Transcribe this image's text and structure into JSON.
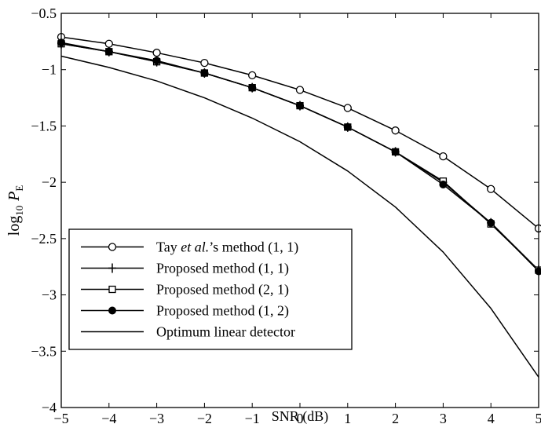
{
  "chart_data": {
    "type": "line",
    "title": "",
    "xlabel": "SNR (dB)",
    "ylabel": {
      "prefix": "log",
      "sub": "10",
      "var": "P",
      "varsub": "E"
    },
    "xlim": [
      -5,
      5
    ],
    "ylim": [
      -4,
      -0.5
    ],
    "xticks": [
      -5,
      -4,
      -3,
      -2,
      -1,
      0,
      1,
      2,
      3,
      4,
      5
    ],
    "yticks": [
      -4,
      -3.5,
      -3,
      -2.5,
      -2,
      -1.5,
      -1,
      -0.5
    ],
    "xtick_labels": [
      "−5",
      "−4",
      "−3",
      "−2",
      "−1",
      "0",
      "1",
      "2",
      "3",
      "4",
      "5"
    ],
    "ytick_labels": [
      "−4",
      "−3.5",
      "−3",
      "−2.5",
      "−2",
      "−1.5",
      "−1",
      "−0.5"
    ],
    "grid": false,
    "legend_position": "bottom-left",
    "x": [
      -5,
      -4,
      -3,
      -2,
      -1,
      0,
      1,
      2,
      3,
      4,
      5
    ],
    "series": [
      {
        "name": "Tay et al.'s method (1, 1)",
        "legend_parts": [
          {
            "t": "Tay "
          },
          {
            "t": "et al.",
            "i": true
          },
          {
            "t": "’s method (1, 1)"
          }
        ],
        "marker": "circle-open",
        "values": [
          -0.71,
          -0.77,
          -0.85,
          -0.94,
          -1.05,
          -1.18,
          -1.34,
          -1.54,
          -1.77,
          -2.06,
          -2.41
        ]
      },
      {
        "name": "Proposed method (1, 1)",
        "legend_parts": [
          {
            "t": "Proposed method (1, 1)"
          }
        ],
        "marker": "plus",
        "values": [
          -0.77,
          -0.84,
          -0.93,
          -1.03,
          -1.16,
          -1.32,
          -1.51,
          -1.73,
          -2.0,
          -2.36,
          -2.78
        ]
      },
      {
        "name": "Proposed method (2, 1)",
        "legend_parts": [
          {
            "t": "Proposed method (2, 1)"
          }
        ],
        "marker": "square-open",
        "values": [
          -0.77,
          -0.84,
          -0.93,
          -1.03,
          -1.16,
          -1.32,
          -1.51,
          -1.73,
          -1.99,
          -2.37,
          -2.78
        ]
      },
      {
        "name": "Proposed method (1, 2)",
        "legend_parts": [
          {
            "t": "Proposed method (1, 2)"
          }
        ],
        "marker": "circle-filled",
        "values": [
          -0.76,
          -0.84,
          -0.92,
          -1.03,
          -1.16,
          -1.32,
          -1.51,
          -1.73,
          -2.02,
          -2.36,
          -2.79
        ]
      },
      {
        "name": "Optimum linear detector",
        "legend_parts": [
          {
            "t": "Optimum linear detector"
          }
        ],
        "marker": "none",
        "values": [
          -0.88,
          -0.98,
          -1.1,
          -1.25,
          -1.43,
          -1.64,
          -1.9,
          -2.22,
          -2.62,
          -3.12,
          -3.73
        ]
      }
    ]
  }
}
